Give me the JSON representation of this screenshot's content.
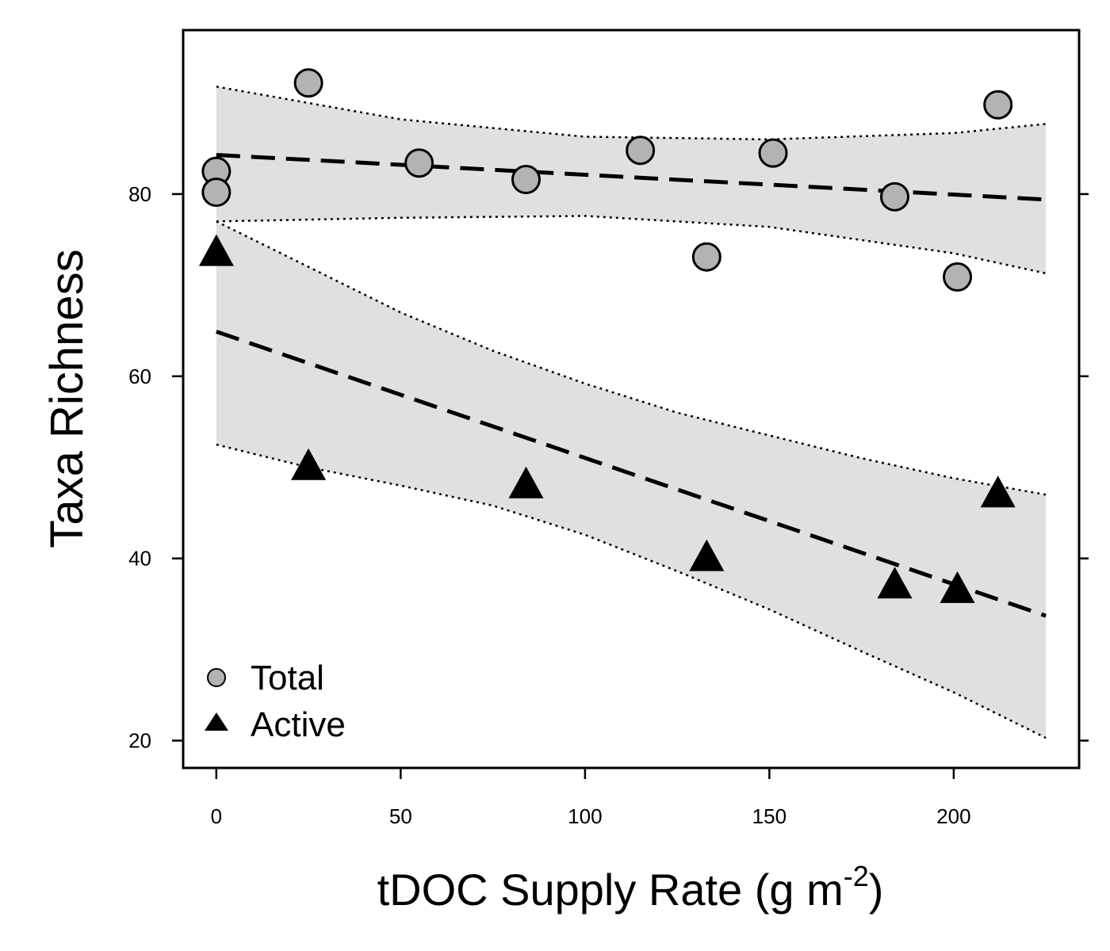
{
  "chart_data": {
    "type": "scatter",
    "xlabel": "tDOC Supply Rate (g m",
    "xlabel_superscript": "-2",
    "xlabel_close": ")",
    "ylabel": "Taxa Richness",
    "xlim": [
      -9,
      234
    ],
    "ylim": [
      17,
      98
    ],
    "xticks": [
      0,
      50,
      100,
      150,
      200
    ],
    "yticks": [
      20,
      40,
      60,
      80
    ],
    "grid": false,
    "legend_position": "bottom-left",
    "band_fill": "#e0e0e0",
    "series": [
      {
        "name": "Total",
        "marker": "circle",
        "color": "#b3b3b3",
        "x": [
          0,
          0,
          25,
          55,
          84,
          115,
          133,
          151,
          184,
          201,
          212
        ],
        "y": [
          82.5,
          80.2,
          92.2,
          83.4,
          81.6,
          84.8,
          73.1,
          84.5,
          79.7,
          70.9,
          89.8
        ],
        "fit": {
          "x": [
            0,
            225
          ],
          "y": [
            84.3,
            79.4
          ]
        },
        "ci_upper": {
          "x": [
            0,
            50,
            100,
            150,
            200,
            225
          ],
          "y": [
            91.8,
            88.2,
            86.3,
            86.0,
            86.7,
            87.7
          ]
        },
        "ci_lower": {
          "x": [
            0,
            50,
            100,
            150,
            200,
            225
          ],
          "y": [
            77.0,
            77.4,
            77.6,
            76.4,
            73.5,
            71.3
          ]
        }
      },
      {
        "name": "Active",
        "marker": "triangle",
        "color": "#000000",
        "x": [
          0,
          25,
          84,
          133,
          184,
          201,
          212
        ],
        "y": [
          73.5,
          50.0,
          48.0,
          40.0,
          37.0,
          36.5,
          47.0
        ],
        "fit": {
          "x": [
            0,
            225
          ],
          "y": [
            64.9,
            33.7
          ]
        },
        "ci_upper": {
          "x": [
            0,
            25,
            50,
            75,
            100,
            125,
            150,
            175,
            200,
            225
          ],
          "y": [
            77.0,
            72.0,
            67.0,
            62.8,
            59.2,
            56.0,
            53.5,
            51.0,
            48.8,
            47.0
          ]
        },
        "ci_lower": {
          "x": [
            0,
            25,
            50,
            75,
            100,
            125,
            150,
            175,
            200,
            225
          ],
          "y": [
            52.5,
            50.0,
            48.0,
            45.8,
            42.6,
            38.6,
            34.4,
            29.8,
            25.3,
            20.3
          ]
        }
      }
    ]
  }
}
